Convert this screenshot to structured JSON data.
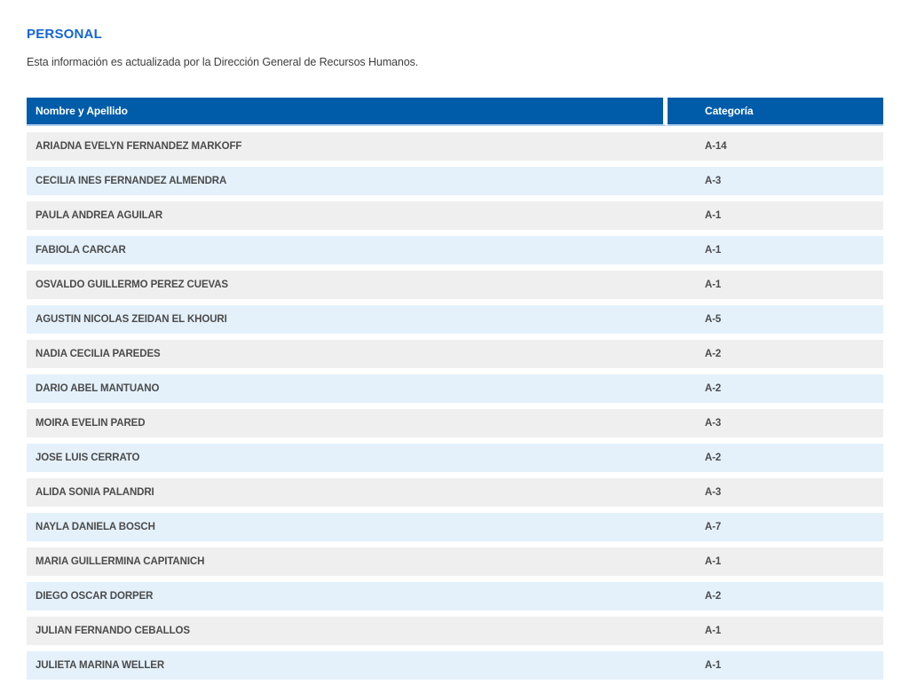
{
  "page": {
    "title": "PERSONAL",
    "subtitle": "Esta información es actualizada por la Dirección General de Recursos Humanos."
  },
  "table": {
    "columns": [
      "Nombre y Apellido",
      "Categoría"
    ],
    "rows": [
      {
        "name": "ARIADNA EVELYN FERNANDEZ MARKOFF",
        "category": "A-14"
      },
      {
        "name": "CECILIA INES FERNANDEZ ALMENDRA",
        "category": "A-3"
      },
      {
        "name": "PAULA ANDREA AGUILAR",
        "category": "A-1"
      },
      {
        "name": "FABIOLA CARCAR",
        "category": "A-1"
      },
      {
        "name": "OSVALDO GUILLERMO PEREZ CUEVAS",
        "category": "A-1"
      },
      {
        "name": "AGUSTIN NICOLAS ZEIDAN EL KHOURI",
        "category": "A-5"
      },
      {
        "name": "NADIA CECILIA PAREDES",
        "category": "A-2"
      },
      {
        "name": "DARIO ABEL MANTUANO",
        "category": "A-2"
      },
      {
        "name": "MOIRA EVELIN PARED",
        "category": "A-3"
      },
      {
        "name": "JOSE LUIS CERRATO",
        "category": "A-2"
      },
      {
        "name": "ALIDA SONIA PALANDRI",
        "category": "A-3"
      },
      {
        "name": "NAYLA DANIELA BOSCH",
        "category": "A-7"
      },
      {
        "name": "MARIA GUILLERMINA CAPITANICH",
        "category": "A-1"
      },
      {
        "name": "DIEGO OSCAR DORPER",
        "category": "A-2"
      },
      {
        "name": "JULIAN FERNANDO CEBALLOS",
        "category": "A-1"
      },
      {
        "name": "JULIETA MARINA WELLER",
        "category": "A-1"
      }
    ]
  },
  "colors": {
    "title_color": "#1565D1",
    "subtitle_color": "#3E3E3E",
    "header_bg": "#005CA9",
    "header_border": "#A9CBE8",
    "row_gray": "#EFEFEF",
    "row_blue": "#E4F1FB",
    "row_text": "#4B4B4B"
  }
}
